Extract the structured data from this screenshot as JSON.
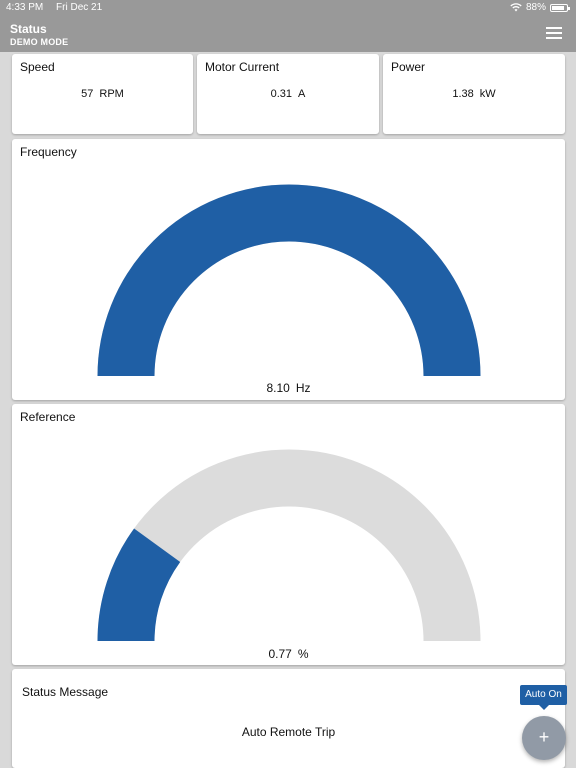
{
  "status_bar": {
    "time": "4:33 PM",
    "date": "Fri Dec 21",
    "battery": "88%",
    "battery_level": 0.88
  },
  "header": {
    "title": "Status",
    "subtitle": "DEMO MODE"
  },
  "metrics": [
    {
      "label": "Speed",
      "value": "57",
      "unit": "RPM"
    },
    {
      "label": "Motor Current",
      "value": "0.31",
      "unit": "A"
    },
    {
      "label": "Power",
      "value": "1.38",
      "unit": "kW"
    }
  ],
  "gauges": {
    "frequency": {
      "label": "Frequency",
      "value": "8.10",
      "unit": "Hz",
      "fill_fraction": 1.0
    },
    "reference": {
      "label": "Reference",
      "value": "0.77",
      "unit": "%",
      "fill_fraction": 0.2
    }
  },
  "status_message": {
    "label": "Status Message",
    "value": "Auto Remote Trip"
  },
  "auto_badge": "Auto On",
  "fab_label": "+",
  "colors": {
    "gauge_fill": "#1f5fa5",
    "gauge_track": "#dcdcdc",
    "header_bg": "#999999",
    "fab_bg": "#919aa6"
  },
  "icons": [
    "wifi-icon",
    "battery-icon",
    "menu-icon",
    "plus-icon"
  ]
}
